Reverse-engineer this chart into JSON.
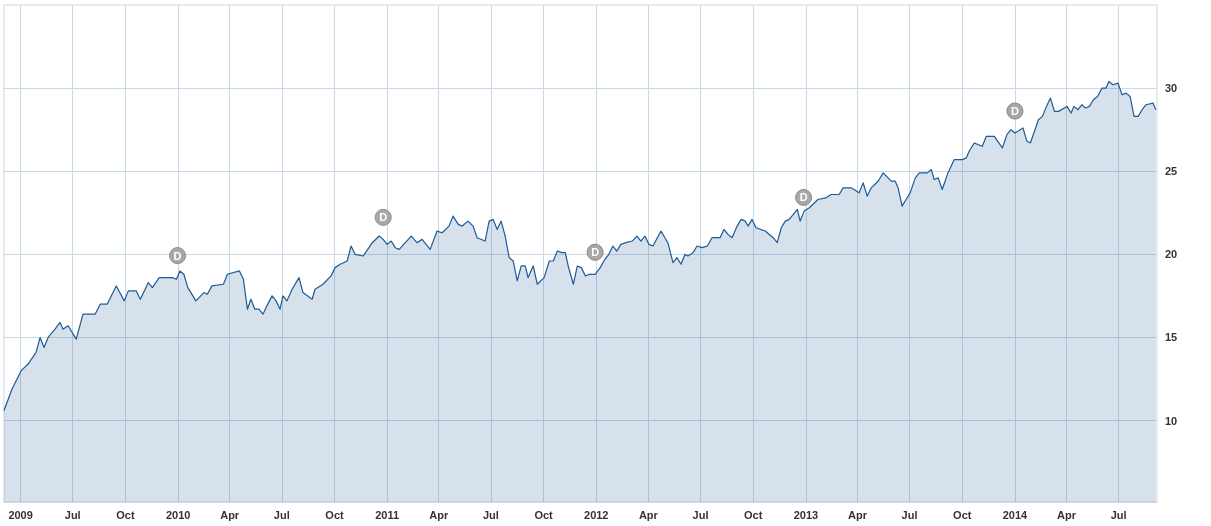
{
  "chart_data": {
    "type": "area",
    "x": [
      "2009-03-03",
      "2009-03-17",
      "2009-04-02",
      "2009-04-14",
      "2009-04-28",
      "2009-05-05",
      "2009-05-12",
      "2009-05-19",
      "2009-05-31",
      "2009-06-09",
      "2009-06-14",
      "2009-06-23",
      "2009-07-07",
      "2009-07-19",
      "2009-08-09",
      "2009-08-18",
      "2009-08-30",
      "2009-09-15",
      "2009-09-29",
      "2009-10-06",
      "2009-10-20",
      "2009-10-27",
      "2009-11-10",
      "2009-11-17",
      "2009-11-29",
      "2009-12-22",
      "2009-12-29",
      "2010-01-04",
      "2010-01-11",
      "2010-01-18",
      "2010-02-01",
      "2010-02-15",
      "2010-02-21",
      "2010-03-01",
      "2010-03-21",
      "2010-03-28",
      "2010-04-18",
      "2010-04-25",
      "2010-05-02",
      "2010-05-08",
      "2010-05-15",
      "2010-05-22",
      "2010-05-29",
      "2010-06-05",
      "2010-06-14",
      "2010-06-21",
      "2010-06-28",
      "2010-07-03",
      "2010-07-10",
      "2010-07-19",
      "2010-07-31",
      "2010-08-07",
      "2010-08-23",
      "2010-08-28",
      "2010-09-11",
      "2010-09-25",
      "2010-10-02",
      "2010-10-11",
      "2010-10-23",
      "2010-10-30",
      "2010-11-06",
      "2010-11-20",
      "2010-12-06",
      "2010-12-18",
      "2010-12-25",
      "2011-01-01",
      "2011-01-08",
      "2011-01-15",
      "2011-01-22",
      "2011-02-12",
      "2011-02-22",
      "2011-03-03",
      "2011-03-17",
      "2011-03-29",
      "2011-04-07",
      "2011-04-19",
      "2011-04-26",
      "2011-05-05",
      "2011-05-12",
      "2011-05-22",
      "2011-05-31",
      "2011-06-07",
      "2011-06-21",
      "2011-06-28",
      "2011-07-05",
      "2011-07-12",
      "2011-07-19",
      "2011-07-26",
      "2011-08-02",
      "2011-08-09",
      "2011-08-16",
      "2011-08-23",
      "2011-08-30",
      "2011-09-04",
      "2011-09-13",
      "2011-09-20",
      "2011-10-02",
      "2011-10-11",
      "2011-10-18",
      "2011-10-25",
      "2011-11-02",
      "2011-11-08",
      "2011-11-13",
      "2011-11-22",
      "2011-11-29",
      "2011-12-06",
      "2011-12-13",
      "2011-12-20",
      "2011-12-30",
      "2012-01-08",
      "2012-01-16",
      "2012-01-23",
      "2012-01-30",
      "2012-02-06",
      "2012-02-13",
      "2012-02-22",
      "2012-03-04",
      "2012-03-12",
      "2012-03-19",
      "2012-03-26",
      "2012-04-02",
      "2012-04-09",
      "2012-04-23",
      "2012-05-05",
      "2012-05-14",
      "2012-05-21",
      "2012-05-28",
      "2012-06-04",
      "2012-06-09",
      "2012-06-18",
      "2012-06-25",
      "2012-07-04",
      "2012-07-13",
      "2012-07-21",
      "2012-08-04",
      "2012-08-11",
      "2012-08-18",
      "2012-08-25",
      "2012-09-03",
      "2012-09-10",
      "2012-09-17",
      "2012-09-22",
      "2012-09-29",
      "2012-10-06",
      "2012-10-22",
      "2012-11-05",
      "2012-11-12",
      "2012-11-19",
      "2012-11-26",
      "2012-12-03",
      "2012-12-17",
      "2012-12-22",
      "2012-12-29",
      "2013-01-07",
      "2013-01-22",
      "2013-02-05",
      "2013-02-14",
      "2013-02-28",
      "2013-03-07",
      "2013-03-21",
      "2013-04-04",
      "2013-04-11",
      "2013-04-18",
      "2013-04-25",
      "2013-05-07",
      "2013-05-16",
      "2013-05-30",
      "2013-06-06",
      "2013-06-11",
      "2013-06-18",
      "2013-06-25",
      "2013-07-02",
      "2013-07-11",
      "2013-07-18",
      "2013-08-01",
      "2013-08-08",
      "2013-08-13",
      "2013-08-20",
      "2013-08-27",
      "2013-09-06",
      "2013-09-17",
      "2013-10-01",
      "2013-10-08",
      "2013-10-13",
      "2013-10-22",
      "2013-11-05",
      "2013-11-12",
      "2013-11-26",
      "2013-12-10",
      "2013-12-18",
      "2013-12-25",
      "2014-01-01",
      "2014-01-15",
      "2014-01-22",
      "2014-01-28",
      "2014-02-11",
      "2014-02-18",
      "2014-02-25",
      "2014-03-04",
      "2014-03-11",
      "2014-03-18",
      "2014-04-02",
      "2014-04-09",
      "2014-04-14",
      "2014-04-21",
      "2014-04-28",
      "2014-05-04",
      "2014-05-11",
      "2014-05-18",
      "2014-05-25",
      "2014-06-02",
      "2014-06-09",
      "2014-06-14",
      "2014-06-21",
      "2014-06-30",
      "2014-07-07",
      "2014-07-14",
      "2014-07-21",
      "2014-07-28",
      "2014-08-04",
      "2014-08-11",
      "2014-08-18",
      "2014-08-30",
      "2014-09-04"
    ],
    "series": [
      {
        "color": "#1d5a97",
        "values": [
          10.6,
          11.9,
          13.0,
          13.4,
          14.1,
          15.0,
          14.4,
          15.0,
          15.5,
          15.9,
          15.5,
          15.7,
          14.9,
          16.4,
          16.4,
          17.0,
          17.0,
          18.1,
          17.2,
          17.8,
          17.8,
          17.3,
          18.3,
          18.0,
          18.6,
          18.6,
          18.5,
          19.0,
          18.8,
          18.0,
          17.2,
          17.7,
          17.6,
          18.1,
          18.2,
          18.8,
          19.0,
          18.5,
          16.7,
          17.3,
          16.7,
          16.7,
          16.4,
          16.9,
          17.5,
          17.2,
          16.7,
          17.5,
          17.2,
          17.9,
          18.6,
          17.7,
          17.3,
          17.9,
          18.2,
          18.7,
          19.2,
          19.4,
          19.6,
          20.5,
          20.0,
          19.9,
          20.7,
          21.1,
          20.9,
          20.6,
          20.8,
          20.4,
          20.3,
          21.1,
          20.7,
          20.9,
          20.3,
          21.4,
          21.3,
          21.7,
          22.3,
          21.8,
          21.7,
          22.0,
          21.7,
          21.0,
          20.8,
          22.0,
          22.1,
          21.5,
          22.0,
          21.1,
          19.8,
          19.6,
          18.4,
          19.3,
          19.3,
          18.6,
          19.3,
          18.2,
          18.6,
          19.6,
          19.6,
          20.2,
          20.1,
          20.1,
          19.3,
          18.2,
          19.3,
          19.2,
          18.7,
          18.8,
          18.8,
          19.2,
          19.7,
          20.0,
          20.5,
          20.2,
          20.6,
          20.7,
          20.8,
          21.1,
          20.8,
          21.1,
          20.6,
          20.5,
          21.4,
          20.7,
          19.5,
          19.8,
          19.4,
          20.0,
          19.9,
          20.1,
          20.5,
          20.4,
          20.5,
          21.0,
          21.0,
          21.5,
          21.2,
          21.0,
          21.7,
          22.1,
          22.0,
          21.7,
          22.1,
          21.6,
          21.4,
          21.0,
          20.7,
          21.6,
          22.0,
          22.1,
          22.7,
          22.0,
          22.6,
          22.8,
          23.3,
          23.4,
          23.6,
          23.6,
          24.0,
          24.0,
          23.7,
          24.3,
          23.5,
          24.0,
          24.4,
          24.9,
          24.4,
          24.4,
          24.0,
          22.9,
          23.3,
          23.7,
          24.6,
          24.9,
          24.9,
          25.1,
          24.5,
          24.6,
          23.9,
          24.9,
          25.7,
          25.7,
          25.8,
          26.2,
          26.7,
          26.5,
          27.1,
          27.1,
          26.4,
          27.2,
          27.5,
          27.3,
          27.6,
          26.8,
          26.7,
          28.1,
          28.3,
          28.9,
          29.4,
          28.6,
          28.6,
          28.9,
          28.5,
          28.9,
          28.7,
          29.0,
          28.8,
          28.9,
          29.3,
          29.5,
          30.0,
          30.0,
          30.4,
          30.2,
          30.3,
          29.6,
          29.7,
          29.5,
          28.3,
          28.3,
          28.7,
          29.0,
          29.1,
          28.7
        ]
      }
    ],
    "xlim": [
      "2009-03-03",
      "2014-09-06"
    ],
    "xticks": [
      {
        "value": "2009-04-01",
        "label": "2009"
      },
      {
        "value": "2009-07-01",
        "label": "Jul"
      },
      {
        "value": "2009-10-01",
        "label": "Oct"
      },
      {
        "value": "2010-01-01",
        "label": "2010"
      },
      {
        "value": "2010-04-01",
        "label": "Apr"
      },
      {
        "value": "2010-07-01",
        "label": "Jul"
      },
      {
        "value": "2010-10-01",
        "label": "Oct"
      },
      {
        "value": "2011-01-01",
        "label": "2011"
      },
      {
        "value": "2011-04-01",
        "label": "Apr"
      },
      {
        "value": "2011-07-01",
        "label": "Jul"
      },
      {
        "value": "2011-10-01",
        "label": "Oct"
      },
      {
        "value": "2012-01-01",
        "label": "2012"
      },
      {
        "value": "2012-04-01",
        "label": "Apr"
      },
      {
        "value": "2012-07-01",
        "label": "Jul"
      },
      {
        "value": "2012-10-01",
        "label": "Oct"
      },
      {
        "value": "2013-01-01",
        "label": "2013"
      },
      {
        "value": "2013-04-01",
        "label": "Apr"
      },
      {
        "value": "2013-07-01",
        "label": "Jul"
      },
      {
        "value": "2013-10-01",
        "label": "Oct"
      },
      {
        "value": "2014-01-01",
        "label": "2014"
      },
      {
        "value": "2014-04-01",
        "label": "Apr"
      },
      {
        "value": "2014-07-01",
        "label": "Jul"
      }
    ],
    "ylim": [
      5.1,
      35
    ],
    "yticks": [
      10,
      15,
      20,
      25,
      30
    ],
    "grid": true,
    "annotations": [
      {
        "text": "D",
        "x": "2009-12-31",
        "y": 18.6
      },
      {
        "text": "D",
        "x": "2010-12-25",
        "y": 20.9
      },
      {
        "text": "D",
        "x": "2011-12-30",
        "y": 18.8
      },
      {
        "text": "D",
        "x": "2012-12-28",
        "y": 22.1
      },
      {
        "text": "D",
        "x": "2014-01-01",
        "y": 27.3
      }
    ]
  }
}
